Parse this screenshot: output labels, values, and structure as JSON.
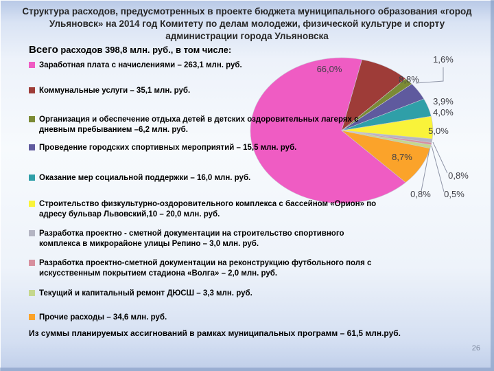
{
  "slide": {
    "title": "Структура расходов, предусмотренных в проекте бюджета муниципального образования «город Ульяновск» на 2014 год Комитету по делам молодежи, физической культуре и спорту администрации города Ульяновска",
    "total": {
      "emphasis": "Всего",
      "rest": " расходов 398,8 млн. руб., в том числе:"
    },
    "footer": "Из суммы планируемых ассигнований в рамках муниципальных программ – 61,5 млн.руб.",
    "page_number": "26"
  },
  "chart_data": {
    "type": "pie",
    "title": "Структура расходов бюджета 2014 — Комитет по делам молодежи, физической культуре и спорту г. Ульяновска",
    "total_mln": 398.8,
    "legend_position": "left",
    "start_angle_deg_clockwise_from_top": 135.5,
    "slices": [
      {
        "legend_label": "Заработная плата с начислениями – 263,1 млн. руб.",
        "value_mln": 263.1,
        "percent": 66.0,
        "color": "#ef5cc3"
      },
      {
        "legend_label": "Коммунальные услуги – 35,1 млн. руб.",
        "value_mln": 35.1,
        "percent": 8.8,
        "color": "#9e3c38"
      },
      {
        "legend_label": "Организация и обеспечение отдыха детей в детских оздоровительных лагерях с дневным пребыванием –6,2 млн. руб.",
        "value_mln": 6.2,
        "percent": 1.6,
        "color": "#7b8a35"
      },
      {
        "legend_label": "Проведение городских спортивных мероприятий – 15,5 млн. руб.",
        "value_mln": 15.5,
        "percent": 3.9,
        "color": "#5f5a9e"
      },
      {
        "legend_label": "Оказание мер социальной поддержки – 16,0 млн. руб.",
        "value_mln": 16.0,
        "percent": 4.0,
        "color": "#2f9fa8"
      },
      {
        "legend_label": "Строительство физкультурно-оздоровительного комплекса с бассейном «Орион» по адресу бульвар Львовский,10 – 20,0 млн. руб.",
        "value_mln": 20.0,
        "percent": 5.0,
        "color": "#f9f33a"
      },
      {
        "legend_label": "Разработка проектно - сметной документации на строительство спортивного комплекса в микрорайоне улицы Репино – 3,0 млн. руб.",
        "value_mln": 3.0,
        "percent": 0.8,
        "color": "#b4b5c3"
      },
      {
        "legend_label": "Разработка проектно-сметной документации на реконструкцию футбольного поля с искусственным покрытием стадиона «Волга» – 2,0 млн. руб.",
        "value_mln": 2.0,
        "percent": 0.5,
        "color": "#d78f9e"
      },
      {
        "legend_label": "Текущий и капитальный ремонт ДЮСШ – 3,3 млн. руб.",
        "value_mln": 3.3,
        "percent": 0.8,
        "color": "#c5d78d"
      },
      {
        "legend_label": "Прочие расходы – 34,6 млн. руб.",
        "value_mln": 34.6,
        "percent": 8.7,
        "color": "#fba32a"
      }
    ]
  }
}
